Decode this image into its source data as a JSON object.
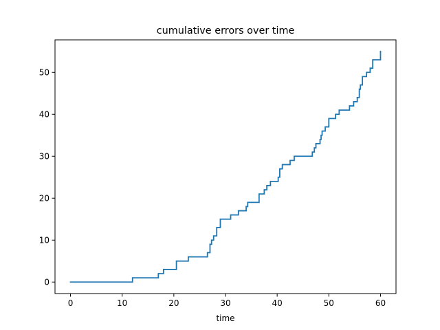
{
  "chart_data": {
    "type": "line",
    "title": "cumulative errors over time",
    "xlabel": "time",
    "ylabel": "",
    "xlim": [
      -3,
      63
    ],
    "ylim": [
      -2.75,
      57.75
    ],
    "xticks": [
      0,
      10,
      20,
      30,
      40,
      50,
      60
    ],
    "yticks": [
      0,
      10,
      20,
      30,
      40,
      50
    ],
    "grid": false,
    "line_color": "#1f77b4",
    "series": [
      {
        "step": "post",
        "x": [
          0,
          12,
          17,
          18,
          20.5,
          22.8,
          26.5,
          27,
          27.3,
          27.7,
          28.3,
          29,
          31,
          32.5,
          34,
          34.3,
          36.5,
          37.5,
          38,
          38.7,
          40.2,
          40.5,
          41,
          42.5,
          43.3,
          46.8,
          47.2,
          47.5,
          48.3,
          48.5,
          48.7,
          49.3,
          50,
          51.3,
          52,
          54,
          54.8,
          55.5,
          55.9,
          56.1,
          56.5,
          57.3,
          58,
          58.5,
          58.7,
          60
        ],
        "y": [
          0,
          1,
          2,
          3,
          5,
          6,
          7,
          9,
          10,
          11,
          13,
          15,
          16,
          17,
          18,
          19,
          21,
          22,
          23,
          24,
          25,
          27,
          28,
          29,
          30,
          31,
          32,
          33,
          34,
          35,
          36,
          37,
          39,
          40,
          41,
          42,
          43,
          44,
          46,
          47,
          49,
          50,
          51,
          53,
          53,
          55
        ]
      }
    ]
  }
}
